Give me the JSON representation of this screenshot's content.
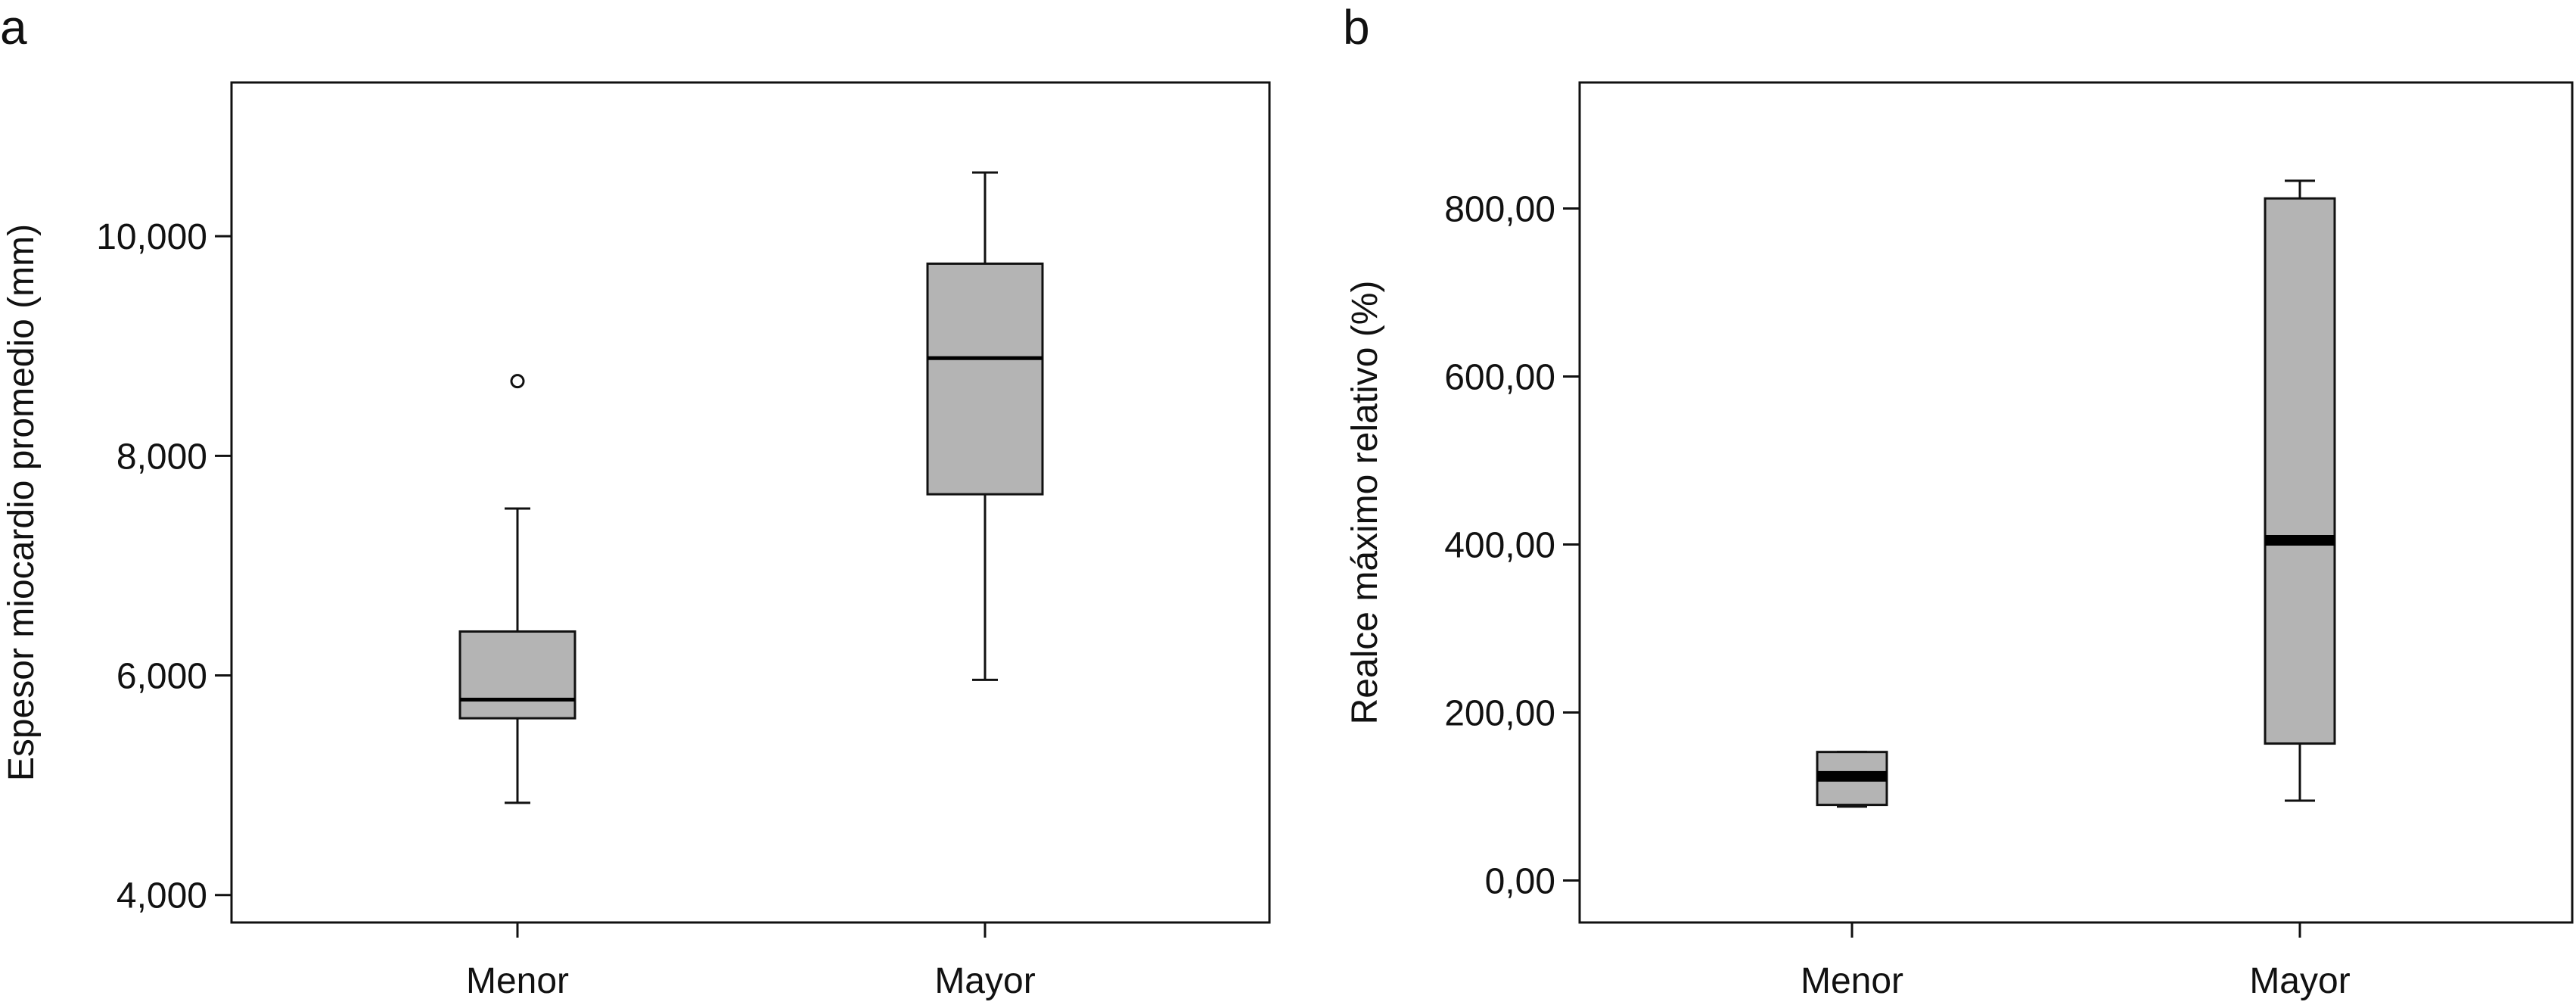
{
  "chart_data": [
    {
      "panel_label": "a",
      "type": "boxplot",
      "title": "",
      "xlabel": "",
      "ylabel": "Espesor miocardio promedio (mm)",
      "ylim": [
        3750,
        11400
      ],
      "yticks": [
        4000,
        6000,
        8000,
        10000
      ],
      "ytick_labels": [
        "4,000",
        "6,000",
        "8,000",
        "10,000"
      ],
      "categories": [
        "Menor",
        "Mayor"
      ],
      "boxes": [
        {
          "category": "Menor",
          "whisker_low": 4840,
          "q1": 5610,
          "median": 5780,
          "q3": 6400,
          "whisker_high": 7520,
          "outliers": [
            8680
          ]
        },
        {
          "category": "Mayor",
          "whisker_low": 5960,
          "q1": 7650,
          "median": 8890,
          "q3": 9750,
          "whisker_high": 10580,
          "outliers": []
        }
      ],
      "grid": false,
      "box_color": "#b4b4b4"
    },
    {
      "panel_label": "b",
      "type": "boxplot",
      "title": "",
      "xlabel": "",
      "ylabel": "Realce máximo relativo (%)",
      "ylim": [
        -50,
        950
      ],
      "yticks": [
        0,
        200,
        400,
        600,
        800
      ],
      "ytick_labels": [
        "0,00",
        "200,00",
        "400,00",
        "600,00",
        "800,00"
      ],
      "categories": [
        "Menor",
        "Mayor"
      ],
      "boxes": [
        {
          "category": "Menor",
          "whisker_low": 88,
          "q1": 90,
          "median": 124,
          "q3": 153,
          "whisker_high": 153,
          "outliers": []
        },
        {
          "category": "Mayor",
          "whisker_low": 95,
          "q1": 163,
          "median": 405,
          "q3": 812,
          "whisker_high": 833,
          "outliers": []
        }
      ],
      "grid": false,
      "box_color": "#b4b4b4"
    }
  ]
}
